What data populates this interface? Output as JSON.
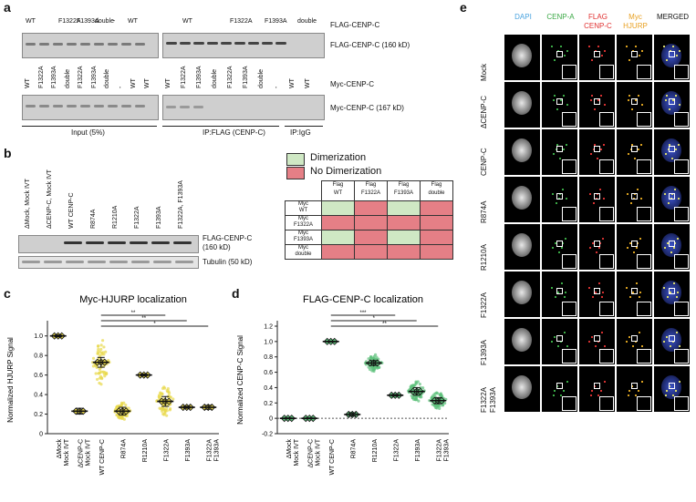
{
  "panels": {
    "a": {
      "letter": "a",
      "top_labels_left": [
        "WT",
        "F1322A",
        "F1393A",
        "double",
        "-",
        "WT"
      ],
      "top_labels_right": [
        "WT",
        "F1322A",
        "F1393A",
        "double"
      ],
      "flag_tag": "FLAG-CENP-C",
      "flag_band": "FLAG-CENP-C (160 kD)",
      "myc_labels_left": [
        "WT",
        "F1322A",
        "F1393A",
        "double",
        "F1322A",
        "F1393A",
        "double",
        "-",
        "WT",
        "WT"
      ],
      "myc_labels_right": [
        "WT",
        "F1322A",
        "F1393A",
        "double",
        "F1322A",
        "F1393A",
        "double",
        "-",
        "WT",
        "WT"
      ],
      "myc_tag": "Myc-CENP-C",
      "myc_band": "Myc-CENP-C (167 kD)",
      "input_label": "Input (5%)",
      "ip_flag_label": "IP:FLAG (CENP-C)",
      "ip_igg_label": "IP:IgG"
    },
    "b": {
      "letter": "b",
      "lanes": [
        "ΔMock, Mock IVT",
        "ΔCENP-C, Mock IVT",
        "WT CENP-C",
        "R874A",
        "R1210A",
        "F1322A",
        "F1393A",
        "F1322A, F1393A"
      ],
      "blot1_label": "FLAG-CENP-C",
      "blot1_label2": "(160 kD)",
      "blot2_label": "Tubulin (50 kD)",
      "legend": {
        "dimer": "Dimerization",
        "nodimer": "No Dimerization",
        "dimer_color": "#cfe8c4",
        "nodimer_color": "#e57f86"
      },
      "cols": [
        "Flag\nWT",
        "Flag\nF1322A",
        "Flag\nF1393A",
        "Flag\ndouble"
      ],
      "col_top": [
        "Flag",
        "Flag",
        "Flag",
        "Flag"
      ],
      "col_bot": [
        "WT",
        "F1322A",
        "F1393A",
        "double"
      ],
      "row_top": [
        "Myc",
        "Myc",
        "Myc",
        "Myc"
      ],
      "row_bot": [
        "WT",
        "F1322A",
        "F1393A",
        "double"
      ],
      "matrix": [
        [
          1,
          0,
          1,
          0
        ],
        [
          0,
          0,
          0,
          0
        ],
        [
          1,
          0,
          1,
          0
        ],
        [
          0,
          0,
          0,
          0
        ]
      ]
    },
    "e": {
      "letter": "e",
      "cols": [
        "DAPI",
        "CENP-A",
        "FLAG",
        "Myc",
        "MERGED"
      ],
      "cols2": [
        "",
        "",
        "CENP-C",
        "HJURP",
        ""
      ],
      "col_colors": [
        "#4aa3df",
        "#3aa845",
        "#e03030",
        "#e8a020",
        "#111111"
      ],
      "rows": [
        "Mock",
        "ΔCENP-C",
        "CENP-C",
        "R874A",
        "R1210A",
        "F1322A",
        "F1393A",
        "F1322A\nF1393A"
      ],
      "rows_a": [
        "Mock",
        "ΔCENP-C",
        "CENP-C",
        "R874A",
        "R1210A",
        "F1322A",
        "F1393A",
        "F1322A"
      ],
      "rows_b": [
        "",
        "",
        "",
        "",
        "",
        "",
        "",
        "F1393A"
      ]
    }
  },
  "chart_data": [
    {
      "type": "scatter",
      "panel": "c",
      "title": "Myc-HJURP localization",
      "ylabel": "Normalized HJURP Signal",
      "ylim": [
        0,
        1.1
      ],
      "yticks": [
        "0",
        "0.2",
        "0.4",
        "0.6",
        "0.8",
        "1.0"
      ],
      "categories": [
        "ΔMock\nMock IVT",
        "ΔCENP-C\nMock IVT",
        "WT CENP-C",
        "R874A",
        "R1210A",
        "F1322A",
        "F1393A",
        "F1322A\nF1393A"
      ],
      "cat_a": [
        "ΔMock",
        "ΔCENP-C",
        "WT CENP-C",
        "R874A",
        "R1210A",
        "F1322A",
        "F1393A",
        "F1322A"
      ],
      "cat_b": [
        "Mock IVT",
        "Mock IVT",
        "",
        "",
        "",
        "",
        "",
        "F1393A"
      ],
      "means": [
        1.0,
        0.23,
        0.73,
        0.23,
        0.6,
        0.33,
        0.27,
        0.27
      ],
      "sems": [
        0.01,
        0.03,
        0.05,
        0.04,
        0.01,
        0.05,
        0.01,
        0.02
      ],
      "spread": [
        0.01,
        0.05,
        0.25,
        0.1,
        0.01,
        0.17,
        0.01,
        0.02
      ],
      "dot_color": "#e8d84a",
      "sig": [
        {
          "from": 2,
          "to": 5,
          "label": "**"
        },
        {
          "from": 2,
          "to": 6,
          "label": "**"
        },
        {
          "from": 2,
          "to": 7,
          "label": "*"
        }
      ]
    },
    {
      "type": "scatter",
      "panel": "d",
      "title": "FLAG-CENP-C localization",
      "ylabel": "Normalized CENP-C Signal",
      "ylim": [
        -0.2,
        1.2
      ],
      "yticks": [
        "-0.2",
        "0",
        "0.2",
        "0.4",
        "0.6",
        "0.8",
        "1.0",
        "1.2"
      ],
      "categories": [
        "ΔMock\nMock IVT",
        "ΔCENP-C\nMock IVT",
        "WT CENP-C",
        "R874A",
        "R1210A",
        "F1322A",
        "F1393A",
        "F1322A\nF1393A"
      ],
      "cat_a": [
        "ΔMock",
        "ΔCENP-C",
        "WT CENP-C",
        "R874A",
        "R1210A",
        "F1322A",
        "F1393A",
        "F1322A"
      ],
      "cat_b": [
        "Mock IVT",
        "Mock IVT",
        "",
        "",
        "",
        "",
        "",
        "F1393A"
      ],
      "means": [
        0.0,
        0.0,
        1.0,
        0.05,
        0.72,
        0.3,
        0.35,
        0.23
      ],
      "sems": [
        0.005,
        0.005,
        0.005,
        0.02,
        0.03,
        0.01,
        0.05,
        0.04
      ],
      "spread": [
        0.005,
        0.005,
        0.005,
        0.05,
        0.12,
        0.02,
        0.15,
        0.12
      ],
      "dot_color": "#5cc07a",
      "sig": [
        {
          "from": 2,
          "to": 5,
          "label": "***"
        },
        {
          "from": 2,
          "to": 6,
          "label": "*"
        },
        {
          "from": 2,
          "to": 7,
          "label": "**"
        }
      ]
    }
  ]
}
